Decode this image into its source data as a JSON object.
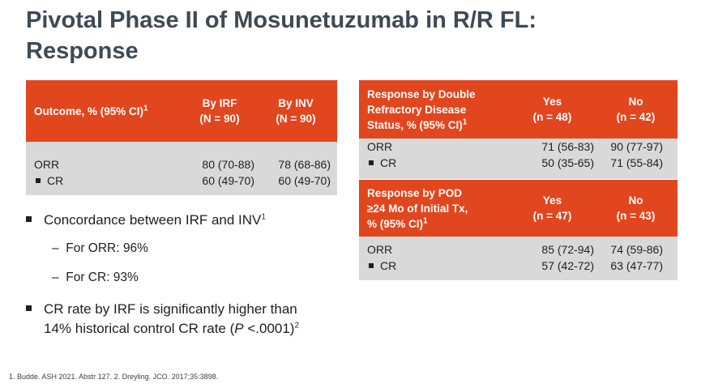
{
  "slide": {
    "title_line1": "Pivotal Phase II of Mosunetuzumab in R/R FL:",
    "title_line2": "Response"
  },
  "table_irf": {
    "header": {
      "outcome": "Outcome, % (95% CI)",
      "outcome_sup": "1",
      "col1_line1": "By IRF",
      "col1_line2": "(N = 90)",
      "col2_line1": "By INV",
      "col2_line2": "(N = 90)"
    },
    "rows": [
      {
        "label": "ORR",
        "v1": "80 (70-88)",
        "v2": "78 (68-86)"
      },
      {
        "label": "CR",
        "v1": "60 (49-70)",
        "v2": "60 (49-70)"
      }
    ]
  },
  "table_double_refractory": {
    "header": {
      "line1": "Response by Double",
      "line2": "Refractory Disease",
      "line3": "Status, % (95% CI)",
      "sup": "1",
      "yes": "Yes",
      "yes_n": "(n = 48)",
      "no": "No",
      "no_n": "(n = 42)"
    },
    "rows": [
      {
        "label": "ORR",
        "yes": "71 (56-83)",
        "no": "90 (77-97)"
      },
      {
        "label": "CR",
        "yes": "50 (35-65)",
        "no": "71 (55-84)"
      }
    ]
  },
  "table_pod24": {
    "header": {
      "line1": "Response by POD",
      "line2": "≥24 Mo of Initial Tx,",
      "line3": "% (95% CI)",
      "sup": "1",
      "yes": "Yes",
      "yes_n": "(n = 47)",
      "no": "No",
      "no_n": "(n = 43)"
    },
    "rows": [
      {
        "label": "ORR",
        "yes": "85 (72-94)",
        "no": "74 (59-86)"
      },
      {
        "label": "CR",
        "yes": "57 (42-72)",
        "no": "63 (47-77)"
      }
    ]
  },
  "bullets": {
    "concordance": "Concordance between IRF and INV",
    "concordance_sup": "1",
    "sub_orr": "For ORR: 96%",
    "sub_cr": "For CR: 93%",
    "dash": "–",
    "cr_rate_line1": "CR rate by IRF is significantly higher than",
    "cr_rate_line2_pre": "14% historical control CR rate (",
    "cr_rate_p": "P",
    "cr_rate_line2_post": " <.0001)",
    "cr_rate_sup": "2"
  },
  "footnote": "1. Budde. ASH 2021. Abstr 127. 2. Dreyling. JCO. 2017;35:3898."
}
